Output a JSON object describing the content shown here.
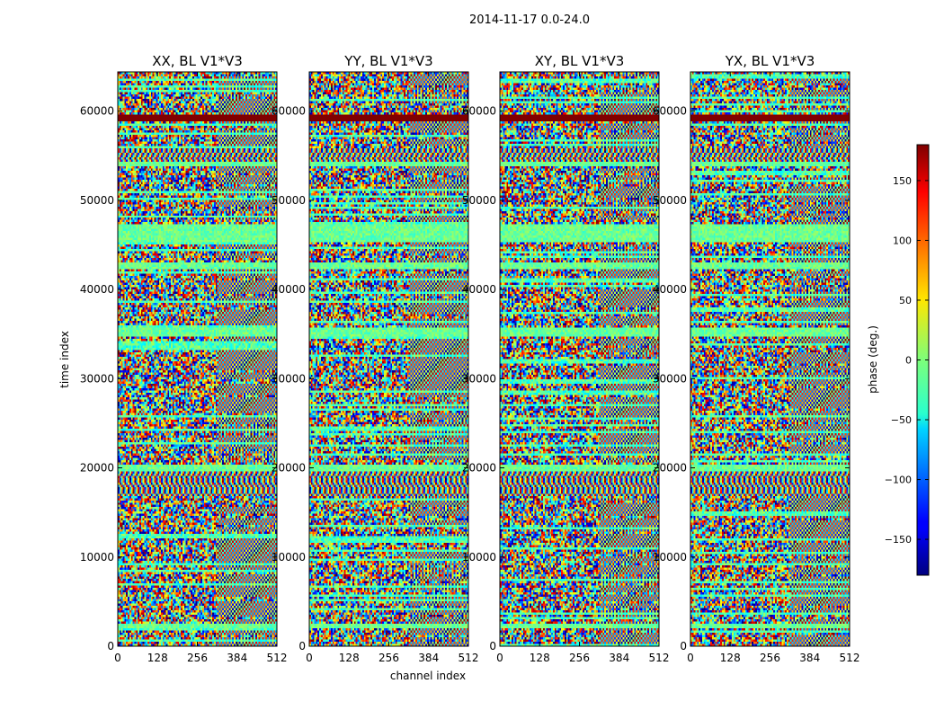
{
  "figure": {
    "suptitle": "2014-11-17 0.0-24.0",
    "colormap": "jet"
  },
  "chart_data": {
    "type": "heatmap",
    "panels": [
      {
        "title": "XX, BL V1*V3",
        "seed": 11
      },
      {
        "title": "YY, BL V1*V3",
        "seed": 23
      },
      {
        "title": "XY, BL V1*V3",
        "seed": 37
      },
      {
        "title": "YX, BL V1*V3",
        "seed": 53
      }
    ],
    "xlabel": "channel index",
    "ylabel": "time index",
    "xlim": [
      0,
      512
    ],
    "ylim": [
      0,
      64400
    ],
    "xticks": [
      0,
      128,
      256,
      384,
      512
    ],
    "yticks": [
      0,
      10000,
      20000,
      30000,
      40000,
      50000,
      60000
    ],
    "xticklabels": [
      "0",
      "128",
      "256",
      "384",
      "512"
    ],
    "yticklabels": [
      "0",
      "10000",
      "20000",
      "30000",
      "40000",
      "50000",
      "60000"
    ],
    "colorbar": {
      "label": "phase (deg.)",
      "vmin": -180,
      "vmax": 180,
      "ticks": [
        150,
        100,
        50,
        0,
        -50,
        -100,
        -150
      ],
      "ticklabels": [
        "150",
        "100",
        "50",
        "0",
        "−50",
        "−100",
        "−150"
      ]
    },
    "features": {
      "saturated_band": [
        58900,
        59700
      ],
      "quiet_bands": [
        [
          19700,
          20500
        ],
        [
          34600,
          35700
        ],
        [
          42300,
          43000
        ],
        [
          45300,
          47200
        ],
        [
          53800,
          55200
        ],
        [
          2000,
          2600
        ]
      ],
      "fringe_bands": [
        [
          16800,
          19600
        ],
        [
          54300,
          55900
        ]
      ]
    }
  }
}
